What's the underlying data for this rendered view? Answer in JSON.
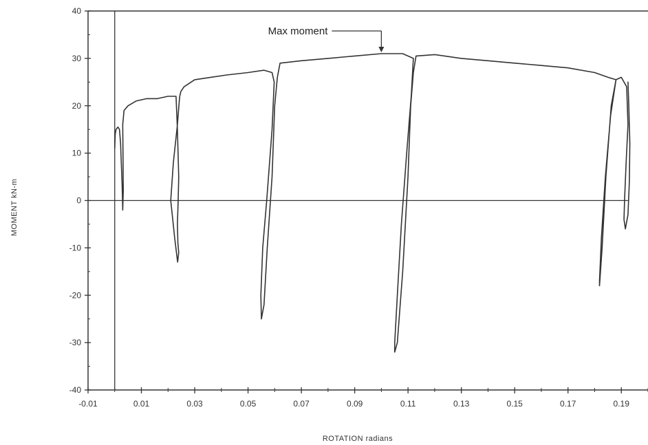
{
  "chart_data": {
    "type": "line",
    "title": "",
    "xlabel": "ROTATION  radians",
    "ylabel": "MOMENT  kN-m",
    "xlim": [
      -0.01,
      0.2
    ],
    "ylim": [
      -40,
      40
    ],
    "xticks": [
      "-0.01",
      "0.01",
      "0.03",
      "0.05",
      "0.07",
      "0.09",
      "0.11",
      "0.13",
      "0.15",
      "0.17",
      "0.19"
    ],
    "yticks": [
      "40",
      "30",
      "20",
      "10",
      "0",
      "-10",
      "-20",
      "-30",
      "-40"
    ],
    "grid": false,
    "annotation": {
      "text": "Max moment",
      "x": 0.1,
      "y": 31
    },
    "series": [
      {
        "x": [
          0.0,
          0.0002,
          0.0005,
          0.0012,
          0.0018,
          0.0022,
          0.0028,
          0.003,
          0.0032,
          0.0031,
          0.003,
          0.0035,
          0.005,
          0.008,
          0.012,
          0.016,
          0.02,
          0.023,
          0.0235,
          0.024,
          0.0238,
          0.0235,
          0.0237,
          0.024,
          0.0236,
          0.0225,
          0.021,
          0.022,
          0.0235,
          0.0242,
          0.0244,
          0.0248,
          0.026,
          0.03,
          0.036,
          0.042,
          0.05,
          0.056,
          0.059,
          0.0598,
          0.059,
          0.057,
          0.0555,
          0.0548,
          0.055,
          0.056,
          0.0572,
          0.059,
          0.06,
          0.061,
          0.062,
          0.07,
          0.08,
          0.09,
          0.1,
          0.108,
          0.112,
          0.1112,
          0.1095,
          0.1075,
          0.106,
          0.105,
          0.105,
          0.106,
          0.108,
          0.11,
          0.111,
          0.112,
          0.113,
          0.12,
          0.13,
          0.14,
          0.15,
          0.16,
          0.17,
          0.18,
          0.185,
          0.188,
          0.1862,
          0.1842,
          0.1828,
          0.1818,
          0.1818,
          0.1825,
          0.184,
          0.186,
          0.188,
          0.19,
          0.192,
          0.1925,
          0.1918,
          0.1912,
          0.191,
          0.1915,
          0.1925,
          0.193,
          0.1932,
          0.1928,
          0.1925
        ],
        "y": [
          11,
          14,
          15,
          15.5,
          15,
          12,
          3,
          -2,
          2,
          10,
          16,
          19,
          20,
          21,
          21.5,
          21.5,
          22,
          22,
          15,
          5,
          0,
          -5,
          -9,
          -11,
          -13,
          -8,
          0,
          8,
          16,
          21,
          22,
          23,
          24,
          25.5,
          26,
          26.5,
          27,
          27.5,
          27,
          25,
          15,
          0,
          -10,
          -20,
          -25,
          -22,
          -10,
          5,
          20,
          26,
          29,
          29.5,
          30,
          30.5,
          31,
          31,
          30,
          22,
          10,
          -5,
          -20,
          -30,
          -32,
          -30,
          -15,
          5,
          20,
          27,
          30.5,
          30.8,
          30,
          29.5,
          29,
          28.5,
          28,
          27,
          26,
          25.5,
          20,
          5,
          -10,
          -18,
          -17,
          -8,
          5,
          18,
          25.5,
          26,
          24,
          16,
          8,
          0,
          -4,
          -6,
          -3,
          4,
          12,
          20,
          25
        ]
      }
    ]
  }
}
